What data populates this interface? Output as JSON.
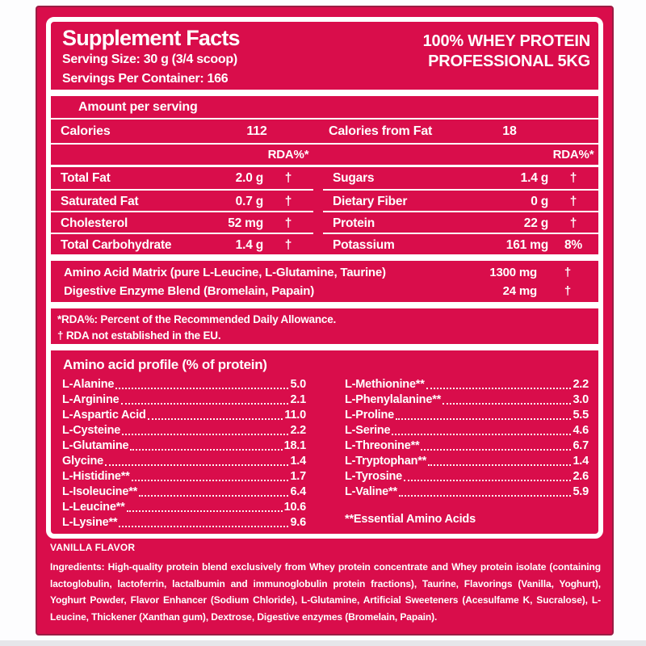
{
  "colors": {
    "label_bg": "#d90d4b",
    "label_border": "#9b1c44",
    "text": "#ffffff",
    "page_bg": "#ffffff"
  },
  "header": {
    "title": "Supplement Facts",
    "serving_size": "Serving Size: 30 g (3/4 scoop)",
    "servings_per_container": "Servings Per Container: 166",
    "product_line1": "100% WHEY PROTEIN",
    "product_line2": "PROFESSIONAL 5KG"
  },
  "facts": {
    "amount_per_serving": "Amount per serving",
    "calories_label": "Calories",
    "calories_value": "112",
    "calories_fat_label": "Calories from Fat",
    "calories_fat_value": "18",
    "rda_header_left": "RDA%*",
    "rda_header_right": "RDA%*",
    "rows": [
      {
        "left": {
          "name": "Total Fat",
          "amount": "2.0 g",
          "rda": "†"
        },
        "right": {
          "name": "Sugars",
          "amount": "1.4 g",
          "rda": "†"
        }
      },
      {
        "left": {
          "name": "Saturated Fat",
          "amount": "0.7 g",
          "rda": "†"
        },
        "right": {
          "name": "Dietary Fiber",
          "amount": "0 g",
          "rda": "†"
        }
      },
      {
        "left": {
          "name": "Cholesterol",
          "amount": "52 mg",
          "rda": "†"
        },
        "right": {
          "name": "Protein",
          "amount": "22 g",
          "rda": "†"
        }
      },
      {
        "left": {
          "name": "Total Carbohydrate",
          "amount": "1.4 g",
          "rda": "†"
        },
        "right": {
          "name": "Potassium",
          "amount": "161 mg",
          "rda": "8%"
        }
      }
    ],
    "blends": [
      {
        "name": "Amino Acid Matrix (pure L-Leucine, L-Glutamine, Taurine)",
        "amount": "1300 mg",
        "rda": "†"
      },
      {
        "name": "Digestive Enzyme Blend (Bromelain, Papain)",
        "amount": "24 mg",
        "rda": "†"
      }
    ],
    "footnote1": "*RDA%: Percent of the Recommended Daily Allowance.",
    "footnote2": "† RDA not established in the EU."
  },
  "amino_profile": {
    "title": "Amino acid profile (% of protein)",
    "left": [
      {
        "name": "L-Alanine",
        "value": "5.0"
      },
      {
        "name": "L-Arginine",
        "value": "2.1"
      },
      {
        "name": "L-Aspartic Acid",
        "value": "11.0"
      },
      {
        "name": "L-Cysteine",
        "value": "2.2"
      },
      {
        "name": "L-Glutamine",
        "value": "18.1"
      },
      {
        "name": "Glycine",
        "value": "1.4"
      },
      {
        "name": "L-Histidine**",
        "value": "1.7"
      },
      {
        "name": "L-Isoleucine**",
        "value": "6.4"
      },
      {
        "name": "L-Leucine**",
        "value": "10.6"
      },
      {
        "name": "L-Lysine**",
        "value": "9.6"
      }
    ],
    "right": [
      {
        "name": "L-Methionine**",
        "value": "2.2"
      },
      {
        "name": "L-Phenylalanine**",
        "value": "3.0"
      },
      {
        "name": "L-Proline",
        "value": "5.5"
      },
      {
        "name": "L-Serine",
        "value": "4.6"
      },
      {
        "name": "L-Threonine**",
        "value": "6.7"
      },
      {
        "name": "L-Tryptophan**",
        "value": "1.4"
      },
      {
        "name": "L-Tyrosine",
        "value": "2.6"
      },
      {
        "name": "L-Valine**",
        "value": "5.9"
      }
    ],
    "essential_note": "**Essential Amino Acids"
  },
  "footer": {
    "flavor": "VANILLA FLAVOR",
    "ingredients": "Ingredients: High-quality protein blend exclusively from Whey protein concentrate and Whey protein isolate (containing lactoglobulin, lactoferrin, lactalbumin and immunoglobulin protein fractions), Taurine, Flavorings (Vanilla, Yoghurt), Yoghurt Powder, Flavor Enhancer (Sodium Chloride), L-Glutamine, Artificial Sweeteners (Acesulfame K, Sucralose), L-Leucine, Thickener (Xanthan gum), Dextrose, Digestive enzymes (Bromelain, Papain)."
  }
}
